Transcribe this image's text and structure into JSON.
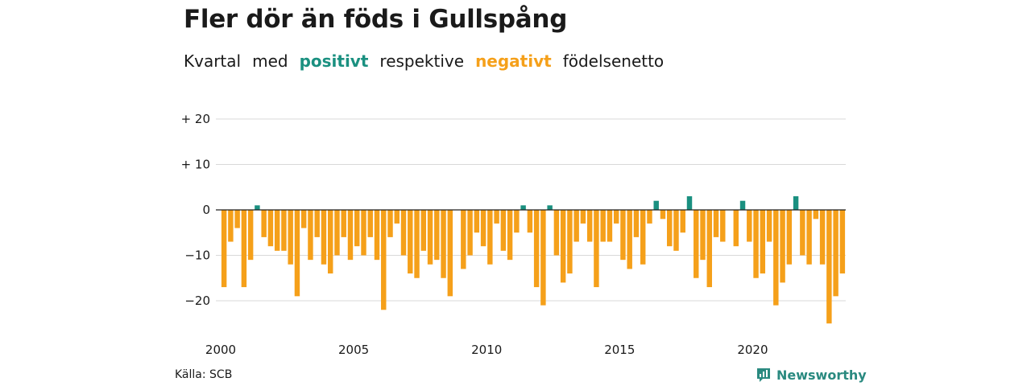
{
  "header": {
    "title": "Fler dör än föds i Gullspång",
    "subtitle_parts": {
      "p1": "Kvartal",
      "p2": "med",
      "p3": "positivt",
      "p4": "respektive",
      "p5": "negativt",
      "p6": "födelsenetto"
    }
  },
  "footer": {
    "source": "Källa: SCB",
    "brand": "Newsworthy",
    "brand_icon": "newsworthy-logo-icon"
  },
  "colors": {
    "positive": "#1a9080",
    "negative": "#f5a01a",
    "grid": "#d9d9d9",
    "zero_line": "#222222",
    "brand": "#2a8a80"
  },
  "chart_data": {
    "type": "bar",
    "title": "Fler dör än föds i Gullspång",
    "subtitle": "Kvartal med positivt respektive negativt födelsenetto",
    "xlabel": "",
    "ylabel": "",
    "ylim": [
      -27,
      22
    ],
    "y_ticks": [
      20,
      10,
      0,
      -10,
      -20
    ],
    "y_tick_labels": [
      "+ 20",
      "+ 10",
      "0",
      "−10",
      "−20"
    ],
    "x_tick_labels": [
      "2000",
      "2005",
      "2010",
      "2015",
      "2020"
    ],
    "x_tick_years": [
      2000,
      2005,
      2010,
      2015,
      2020
    ],
    "start_year": 2000,
    "grid": true,
    "legend": "none",
    "values": [
      -17,
      -7,
      -4,
      -17,
      -11,
      1,
      -6,
      -8,
      -9,
      -9,
      -12,
      -19,
      -4,
      -11,
      -6,
      -12,
      -14,
      -10,
      -6,
      -11,
      -8,
      -10,
      -6,
      -11,
      -22,
      -6,
      -3,
      -10,
      -14,
      -15,
      -9,
      -12,
      -11,
      -15,
      -19,
      0,
      -13,
      -10,
      -5,
      -8,
      -12,
      -3,
      -9,
      -11,
      -5,
      1,
      -5,
      -17,
      -21,
      1,
      -10,
      -16,
      -14,
      -7,
      -3,
      -7,
      -17,
      -7,
      -7,
      -3,
      -11,
      -13,
      -6,
      -12,
      -3,
      2,
      -2,
      -8,
      -9,
      -5,
      3,
      -15,
      -11,
      -17,
      -6,
      -7,
      0,
      -8,
      2,
      -7,
      -15,
      -14,
      -7,
      -21,
      -16,
      -12,
      3,
      -10,
      -12,
      -2,
      -12,
      -25,
      -19,
      -14
    ]
  }
}
